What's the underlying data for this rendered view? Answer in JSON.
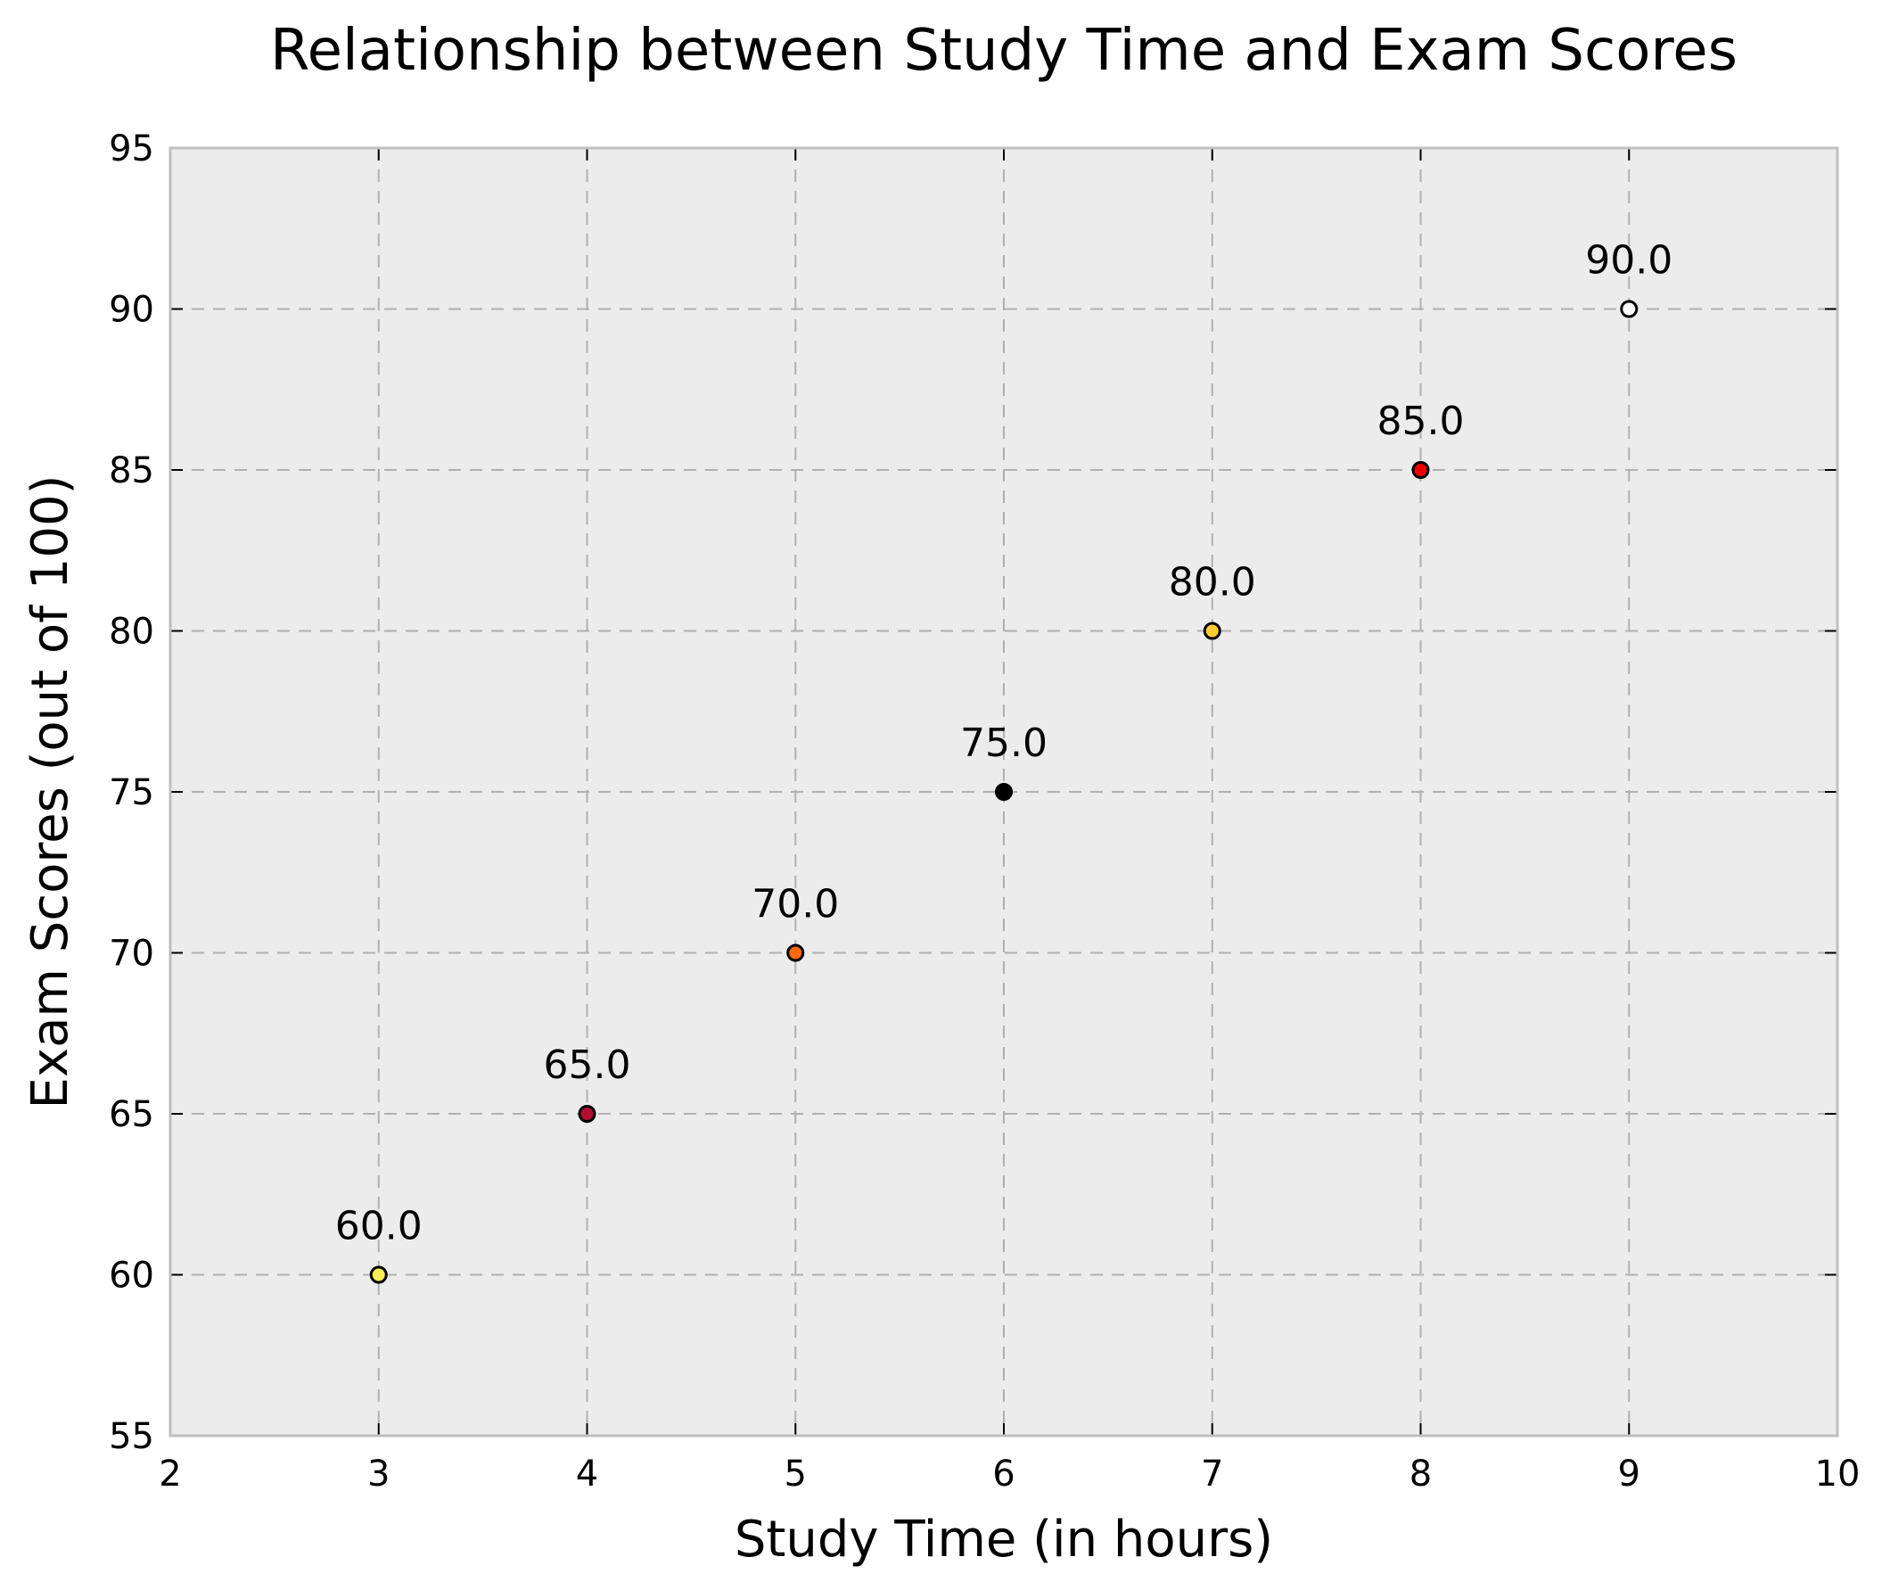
{
  "chart_data": {
    "type": "scatter",
    "title": "Relationship between Study Time and Exam Scores",
    "xlabel": "Study Time (in hours)",
    "ylabel": "Exam Scores (out of 100)",
    "xlim": [
      2,
      10
    ],
    "ylim": [
      55,
      95
    ],
    "xticks": [
      2,
      3,
      4,
      5,
      6,
      7,
      8,
      9,
      10
    ],
    "yticks": [
      55,
      60,
      65,
      70,
      75,
      80,
      85,
      90,
      95
    ],
    "grid": true,
    "grid_style": "dashed",
    "legend": "none",
    "colors": {
      "plot_background": "#ececec",
      "grid": "#b0b0b0",
      "frame": "#bfbfbf",
      "marker_edge": "#000000"
    },
    "points": [
      {
        "x": 3,
        "y": 60,
        "label": "60.0",
        "color": "#ffee55"
      },
      {
        "x": 4,
        "y": 65,
        "label": "65.0",
        "color": "#b01030"
      },
      {
        "x": 5,
        "y": 70,
        "label": "70.0",
        "color": "#ff6a10"
      },
      {
        "x": 6,
        "y": 75,
        "label": "75.0",
        "color": "#000000"
      },
      {
        "x": 7,
        "y": 80,
        "label": "80.0",
        "color": "#ffcc33"
      },
      {
        "x": 8,
        "y": 85,
        "label": "85.0",
        "color": "#ee0000"
      },
      {
        "x": 9,
        "y": 90,
        "label": "90.0",
        "color": "#ffffff"
      }
    ]
  }
}
